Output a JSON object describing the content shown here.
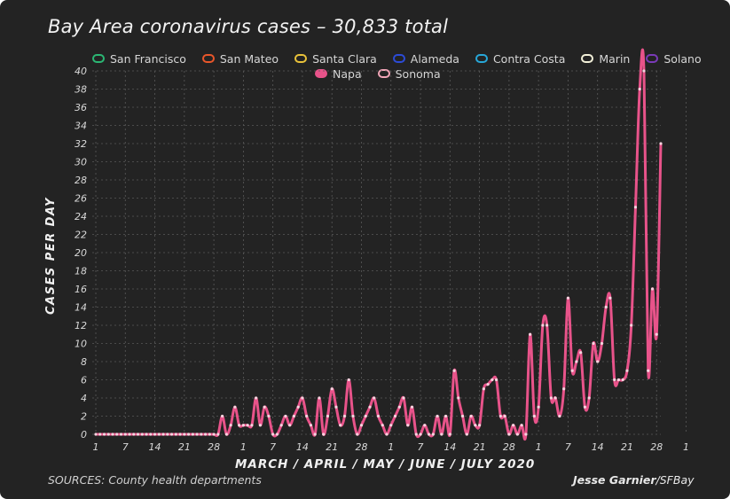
{
  "title": "Bay Area coronavirus cases – 30,833 total",
  "sources": "SOURCES: County health departments",
  "credit_author": "Jesse Garnier",
  "credit_org": "/SFBay",
  "legend": [
    {
      "name": "San Francisco",
      "color": "#2bb673",
      "filled": false
    },
    {
      "name": "San Mateo",
      "color": "#e8562a",
      "filled": false
    },
    {
      "name": "Santa Clara",
      "color": "#e9c23a",
      "filled": false
    },
    {
      "name": "Alameda",
      "color": "#2c4bd6",
      "filled": false
    },
    {
      "name": "Contra Costa",
      "color": "#27a7d8",
      "filled": false
    },
    {
      "name": "Marin",
      "color": "#f2f0d8",
      "filled": false
    },
    {
      "name": "Solano",
      "color": "#7a3ab8",
      "filled": false
    },
    {
      "name": "Napa",
      "color": "#e8538a",
      "filled": true
    },
    {
      "name": "Sonoma",
      "color": "#f2a6b8",
      "filled": false
    }
  ],
  "chart_data": {
    "type": "line",
    "title": "Bay Area coronavirus cases – 30,833 total",
    "xlabel": "MARCH / APRIL / MAY / JUNE / JULY 2020",
    "ylabel": "CASES PER DAY",
    "ylim": [
      0,
      40
    ],
    "yticks": [
      0,
      2,
      4,
      6,
      8,
      10,
      12,
      14,
      16,
      18,
      20,
      22,
      24,
      26,
      28,
      30,
      32,
      34,
      36,
      38,
      40
    ],
    "xtick_labels": [
      "1",
      "7",
      "14",
      "21",
      "28",
      "1",
      "7",
      "14",
      "21",
      "28",
      "1",
      "7",
      "14",
      "21",
      "28",
      "1",
      "7",
      "14",
      "21",
      "28",
      "1"
    ],
    "grid": true,
    "series": [
      {
        "name": "Napa",
        "color": "#e8538a",
        "values": [
          0,
          0,
          0,
          0,
          0,
          0,
          0,
          0,
          0,
          0,
          0,
          0,
          0,
          0,
          0,
          0,
          0,
          0,
          0,
          0,
          0,
          0,
          0,
          0,
          0,
          0,
          0,
          0,
          0,
          0,
          2,
          0,
          1,
          3,
          1,
          1,
          1,
          1,
          4,
          1,
          3,
          2,
          0,
          0,
          1,
          2,
          1,
          2,
          3,
          4,
          2,
          1,
          0,
          4,
          0,
          2,
          5,
          3,
          1,
          2,
          6,
          2,
          0,
          1,
          2,
          3,
          4,
          2,
          1,
          0,
          1,
          2,
          3,
          4,
          1,
          3,
          0,
          0,
          1,
          0,
          0,
          2,
          0,
          2,
          0,
          7,
          4,
          2,
          0,
          2,
          1,
          1,
          5,
          5.5,
          6,
          6,
          2,
          2,
          0,
          1,
          0,
          1,
          0,
          11,
          2,
          3,
          12,
          12,
          4,
          4,
          2,
          5,
          15,
          7,
          8,
          9,
          3,
          4,
          10,
          8,
          10,
          14,
          15,
          6,
          6,
          6,
          7,
          12,
          25,
          38,
          40,
          7,
          16,
          11,
          32
        ]
      }
    ]
  }
}
